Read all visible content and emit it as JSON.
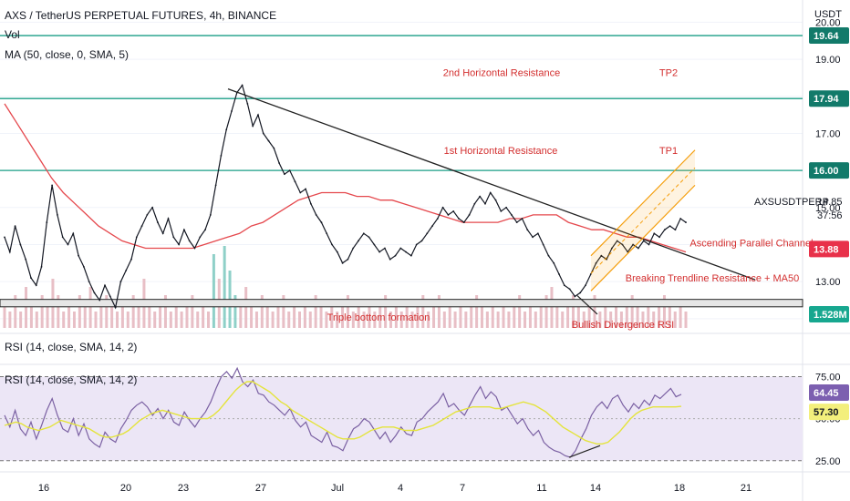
{
  "header": {
    "title": "AXS / TetherUS PERPETUAL FUTURES, 4h, BINANCE",
    "vol_label": "Vol",
    "ma_label": "MA (50, close, 0, SMA, 5)",
    "rsi_label_1": "RSI (14, close, SMA, 14, 2)",
    "rsi_label_2": "RSI (14, close, SMA, 14, 2)",
    "currency": "USDT"
  },
  "colors": {
    "price_line": "#131722",
    "ma_line": "#e5484d",
    "resistance_line": "#1a9e86",
    "annotation_text": "#d32f2f",
    "volume_bar": "#e8bfc6",
    "volume_highlight": "#8fd0c8",
    "rsi_line": "#7b61a3",
    "rsi_signal": "#e4e43c",
    "rsi_band": "#ece6f6",
    "channel": "#f59e0b",
    "price_badge": "#e8314a",
    "volume_badge": "#17a78f",
    "rsi_badge": "#7c5fb0",
    "rsi_signal_badge": "#f3ef7c"
  },
  "chart_data": [
    {
      "type": "line",
      "name": "price",
      "x_ticks": [
        "16",
        "20",
        "23",
        "27",
        "Jul",
        "4",
        "7",
        "11",
        "14",
        "18",
        "21"
      ],
      "y_ticks": [
        12.0,
        13.0,
        14.0,
        15.0,
        16.0,
        17.0,
        18.0,
        19.0,
        20.0
      ],
      "ylim": [
        11.75,
        20.6
      ],
      "close_values": [
        14.2,
        13.8,
        14.5,
        14.0,
        13.6,
        13.1,
        12.9,
        13.4,
        14.6,
        15.6,
        14.8,
        14.2,
        14.0,
        14.3,
        13.7,
        13.4,
        13.0,
        12.7,
        12.5,
        12.9,
        12.6,
        12.3,
        13.0,
        13.3,
        13.6,
        14.2,
        14.5,
        14.8,
        15.0,
        14.6,
        14.3,
        14.7,
        14.2,
        14.0,
        14.4,
        14.1,
        13.9,
        14.2,
        14.4,
        14.8,
        15.6,
        16.4,
        17.1,
        17.6,
        18.1,
        18.3,
        17.8,
        17.2,
        17.5,
        17.0,
        16.8,
        16.6,
        16.2,
        15.9,
        16.0,
        15.7,
        15.4,
        15.5,
        15.1,
        14.8,
        14.6,
        14.3,
        14.0,
        13.8,
        13.5,
        13.6,
        13.9,
        14.1,
        14.3,
        14.2,
        14.0,
        13.8,
        13.9,
        13.6,
        13.7,
        13.9,
        13.8,
        13.7,
        14.0,
        14.1,
        14.3,
        14.5,
        14.7,
        15.0,
        14.8,
        14.9,
        14.7,
        14.6,
        14.8,
        15.1,
        15.3,
        15.1,
        15.4,
        15.2,
        14.9,
        15.0,
        14.8,
        14.6,
        14.7,
        14.4,
        14.2,
        14.3,
        14.0,
        13.7,
        13.5,
        13.2,
        12.9,
        12.8,
        12.6,
        12.7,
        12.9,
        13.2,
        13.5,
        13.7,
        13.6,
        13.9,
        14.1,
        14.0,
        13.8,
        14.0,
        13.9,
        14.1,
        14.0,
        14.3,
        14.2,
        14.4,
        14.5,
        14.4,
        14.7,
        14.6
      ],
      "ma_values": [
        17.8,
        17.3,
        16.8,
        16.3,
        15.8,
        15.4,
        15.1,
        14.8,
        14.5,
        14.3,
        14.1,
        14.0,
        13.9,
        13.9,
        13.9,
        13.9,
        13.9,
        14.0,
        14.1,
        14.2,
        14.3,
        14.5,
        14.6,
        14.8,
        15.0,
        15.2,
        15.3,
        15.4,
        15.4,
        15.4,
        15.3,
        15.3,
        15.2,
        15.2,
        15.1,
        15.0,
        14.9,
        14.8,
        14.7,
        14.6,
        14.6,
        14.6,
        14.6,
        14.7,
        14.7,
        14.8,
        14.8,
        14.8,
        14.6,
        14.5,
        14.4,
        14.4,
        14.3,
        14.2,
        14.2,
        14.1,
        14.0,
        13.9,
        13.8
      ],
      "horizontal_levels": [
        {
          "value": 19.64,
          "label": "19.64"
        },
        {
          "value": 17.94,
          "label": "17.94"
        },
        {
          "value": 16.0,
          "label": "16.00"
        }
      ],
      "last_price": "13.88",
      "symbol_label": "AXSUSDTPERP",
      "symbol_value": "14.85",
      "countdown": "37:56",
      "support_zone": [
        12.32,
        12.52
      ],
      "annotations": [
        {
          "text": "2nd Horizontal Resistance"
        },
        {
          "text": "TP2"
        },
        {
          "text": "1st Horizontal Resistance"
        },
        {
          "text": "TP1"
        },
        {
          "text": "Ascending Parallel Channel"
        },
        {
          "text": "Breaking Trendline Resistance + MA50"
        },
        {
          "text": "Triple bottom formation"
        },
        {
          "text": "Bullish Divergence RSI"
        }
      ]
    },
    {
      "type": "bar",
      "name": "volume",
      "last_value": "1.528M",
      "values": [
        3,
        2,
        4,
        2,
        5,
        3,
        2,
        4,
        3,
        6,
        4,
        2,
        3,
        2,
        4,
        3,
        5,
        2,
        3,
        4,
        3,
        2,
        3,
        2,
        4,
        3,
        6,
        3,
        2,
        3,
        4,
        2,
        3,
        2,
        3,
        4,
        2,
        3,
        2,
        9,
        6,
        10,
        7,
        4,
        3,
        5,
        3,
        2,
        4,
        3,
        2,
        3,
        4,
        2,
        3,
        2,
        3,
        2,
        4,
        3,
        2,
        3,
        2,
        3,
        4,
        2,
        3,
        2,
        3,
        2,
        3,
        4,
        2,
        3,
        2,
        3,
        2,
        3,
        4,
        2,
        3,
        4,
        2,
        3,
        2,
        3,
        2,
        3,
        4,
        3,
        2,
        3,
        2,
        3,
        2,
        3,
        4,
        2,
        3,
        2,
        3,
        4,
        5,
        3,
        2,
        3,
        4,
        3,
        2,
        3,
        4,
        2,
        3,
        2,
        3,
        2,
        3,
        4,
        3,
        2,
        3,
        2,
        3,
        4,
        3,
        2,
        3,
        2
      ],
      "highlight_indices": [
        39,
        41,
        42,
        43
      ]
    },
    {
      "type": "line",
      "name": "rsi",
      "y_ticks": [
        25.0,
        50.0,
        75.0
      ],
      "ylim": [
        20,
        85
      ],
      "band": [
        25,
        75
      ],
      "last_value": "64.45",
      "signal_value": "57.30",
      "rsi_values": [
        52,
        45,
        55,
        44,
        40,
        48,
        38,
        46,
        55,
        62,
        52,
        44,
        42,
        50,
        40,
        47,
        38,
        35,
        33,
        42,
        38,
        36,
        44,
        49,
        55,
        58,
        60,
        57,
        52,
        56,
        50,
        55,
        48,
        46,
        54,
        49,
        45,
        50,
        54,
        60,
        68,
        75,
        78,
        74,
        80,
        72,
        69,
        73,
        65,
        64,
        60,
        58,
        55,
        52,
        56,
        49,
        45,
        48,
        40,
        38,
        36,
        42,
        34,
        33,
        31,
        38,
        44,
        46,
        50,
        48,
        43,
        38,
        42,
        36,
        40,
        45,
        41,
        40,
        48,
        50,
        54,
        57,
        60,
        65,
        57,
        59,
        55,
        52,
        58,
        64,
        69,
        62,
        66,
        63,
        55,
        57,
        52,
        47,
        50,
        44,
        40,
        43,
        36,
        33,
        31,
        30,
        28,
        27,
        31,
        38,
        44,
        52,
        57,
        60,
        56,
        62,
        64,
        58,
        54,
        59,
        56,
        61,
        58,
        64,
        62,
        65,
        68,
        63,
        64.45
      ],
      "signal_values": [
        46,
        47,
        48,
        47,
        45,
        44,
        43,
        44,
        45,
        47,
        49,
        48,
        47,
        46,
        45,
        44,
        42,
        40,
        39,
        39,
        40,
        41,
        43,
        46,
        49,
        51,
        53,
        54,
        55,
        54,
        53,
        52,
        51,
        50,
        50,
        50,
        50,
        52,
        55,
        59,
        63,
        67,
        70,
        72,
        72,
        70,
        68,
        66,
        63,
        60,
        58,
        55,
        53,
        51,
        49,
        47,
        45,
        43,
        41,
        39,
        38,
        38,
        38,
        39,
        41,
        43,
        44,
        45,
        45,
        45,
        44,
        43,
        43,
        43,
        44,
        45,
        46,
        48,
        50,
        52,
        54,
        55,
        56,
        57,
        57,
        57,
        57,
        56,
        56,
        57,
        58,
        59,
        60,
        59,
        58,
        56,
        54,
        51,
        48,
        45,
        43,
        41,
        39,
        37,
        36,
        35,
        35,
        36,
        39,
        42,
        46,
        50,
        53,
        55,
        56,
        57,
        57,
        57,
        57,
        57,
        57.3
      ]
    }
  ]
}
